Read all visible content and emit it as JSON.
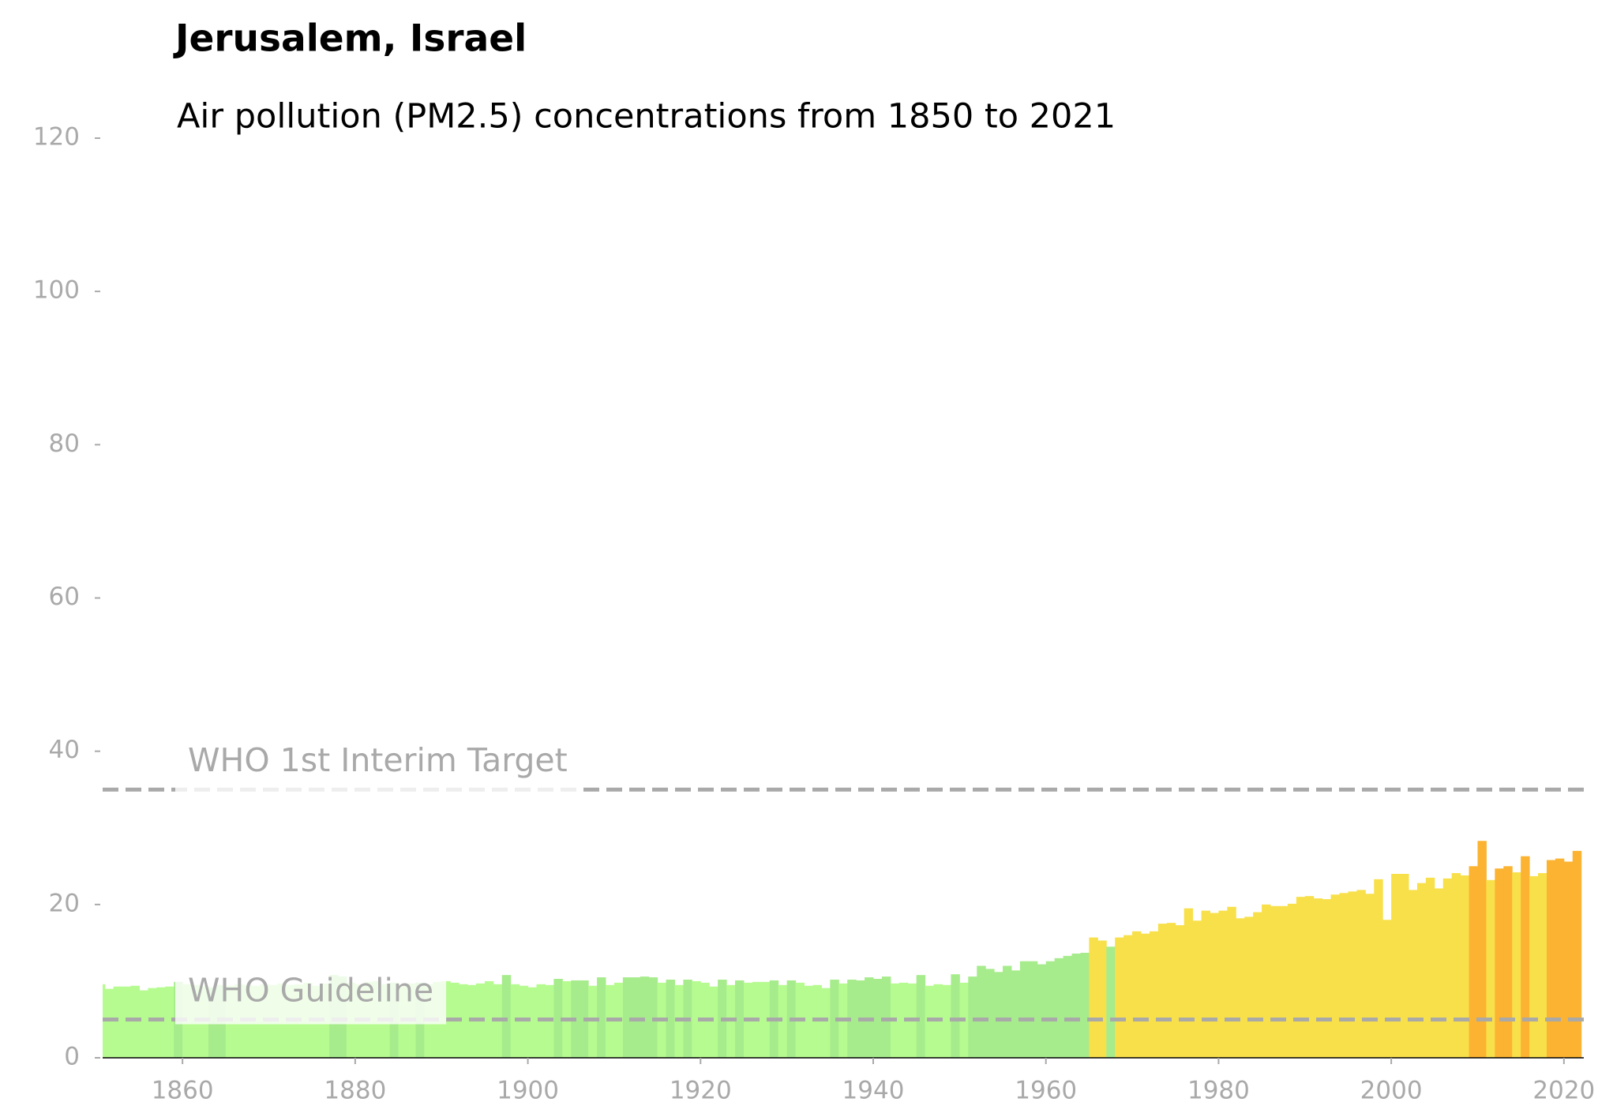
{
  "chart_data": {
    "type": "bar",
    "title": "Jerusalem, Israel",
    "subtitle": "Air pollution (PM2.5) concentrations from 1850 to 2021",
    "x": [
      1850,
      1851,
      1852,
      1853,
      1854,
      1855,
      1856,
      1857,
      1858,
      1859,
      1860,
      1861,
      1862,
      1863,
      1864,
      1865,
      1866,
      1867,
      1868,
      1869,
      1870,
      1871,
      1872,
      1873,
      1874,
      1875,
      1876,
      1877,
      1878,
      1879,
      1880,
      1881,
      1882,
      1883,
      1884,
      1885,
      1886,
      1887,
      1888,
      1889,
      1890,
      1891,
      1892,
      1893,
      1894,
      1895,
      1896,
      1897,
      1898,
      1899,
      1900,
      1901,
      1902,
      1903,
      1904,
      1905,
      1906,
      1907,
      1908,
      1909,
      1910,
      1911,
      1912,
      1913,
      1914,
      1915,
      1916,
      1917,
      1918,
      1919,
      1920,
      1921,
      1922,
      1923,
      1924,
      1925,
      1926,
      1927,
      1928,
      1929,
      1930,
      1931,
      1932,
      1933,
      1934,
      1935,
      1936,
      1937,
      1938,
      1939,
      1940,
      1941,
      1942,
      1943,
      1944,
      1945,
      1946,
      1947,
      1948,
      1949,
      1950,
      1951,
      1952,
      1953,
      1954,
      1955,
      1956,
      1957,
      1958,
      1959,
      1960,
      1961,
      1962,
      1963,
      1964,
      1965,
      1966,
      1967,
      1968,
      1969,
      1970,
      1971,
      1972,
      1973,
      1974,
      1975,
      1976,
      1977,
      1978,
      1979,
      1980,
      1981,
      1982,
      1983,
      1984,
      1985,
      1986,
      1987,
      1988,
      1989,
      1990,
      1991,
      1992,
      1993,
      1994,
      1995,
      1996,
      1997,
      1998,
      1999,
      2000,
      2001,
      2002,
      2003,
      2004,
      2005,
      2006,
      2007,
      2008,
      2009,
      2010,
      2011,
      2012,
      2013,
      2014,
      2015,
      2016,
      2017,
      2018,
      2019,
      2020,
      2021
    ],
    "values": [
      9.6,
      9.0,
      9.3,
      9.3,
      9.4,
      8.8,
      9.1,
      9.2,
      9.3,
      9.9,
      9.6,
      9.5,
      9.4,
      9.2,
      9.5,
      9.4,
      9.6,
      9.5,
      9.4,
      9.6,
      9.5,
      9.7,
      9.5,
      9.6,
      9.8,
      9.4,
      9.7,
      10.8,
      10.6,
      9.8,
      9.6,
      9.9,
      10.0,
      9.6,
      9.8,
      9.5,
      9.7,
      9.8,
      9.6,
      9.9,
      10.0,
      9.8,
      9.6,
      9.5,
      9.7,
      10.0,
      9.6,
      10.8,
      9.6,
      9.4,
      9.2,
      9.6,
      9.5,
      10.3,
      10.0,
      10.1,
      10.1,
      9.4,
      10.5,
      9.5,
      9.8,
      10.5,
      10.5,
      10.6,
      10.5,
      9.8,
      10.2,
      9.5,
      10.2,
      10.0,
      9.8,
      9.3,
      10.2,
      9.5,
      10.1,
      9.8,
      9.9,
      9.9,
      10.1,
      9.5,
      10.1,
      9.8,
      9.4,
      9.5,
      9.1,
      10.2,
      9.7,
      10.2,
      10.1,
      10.5,
      10.3,
      10.6,
      9.7,
      9.8,
      9.7,
      10.8,
      9.4,
      9.6,
      9.5,
      10.9,
      9.8,
      10.6,
      12.0,
      11.6,
      11.2,
      12.0,
      11.4,
      12.6,
      12.6,
      12.2,
      12.6,
      13.0,
      13.3,
      13.6,
      13.7,
      15.7,
      15.3,
      14.5,
      15.7,
      16.0,
      16.5,
      16.2,
      16.5,
      17.5,
      17.6,
      17.3,
      19.5,
      17.9,
      19.2,
      18.9,
      19.2,
      19.7,
      18.2,
      18.4,
      19.0,
      20.0,
      19.8,
      19.8,
      20.1,
      21.0,
      21.1,
      20.8,
      20.7,
      21.3,
      21.5,
      21.7,
      21.9,
      21.4,
      23.3,
      18.0,
      24.0,
      24.0,
      21.9,
      22.8,
      23.5,
      22.1,
      23.4,
      24.1,
      23.8,
      25.0,
      28.3,
      23.2,
      24.7,
      25.0,
      24.2,
      26.3,
      23.7,
      24.1,
      25.8,
      26.0,
      25.6,
      27.0
    ],
    "colors": [
      "#b6fb90",
      "#b6fb90",
      "#b6fb90",
      "#b6fb90",
      "#b6fb90",
      "#b6fb90",
      "#b6fb90",
      "#b6fb90",
      "#b6fb90",
      "#a7ec8c",
      "#b6fb90",
      "#b6fb90",
      "#b6fb90",
      "#a7ec8c",
      "#a7ec8c",
      "#b6fb90",
      "#b6fb90",
      "#b6fb90",
      "#b6fb90",
      "#b6fb90",
      "#b6fb90",
      "#b6fb90",
      "#b6fb90",
      "#b6fb90",
      "#b6fb90",
      "#b6fb90",
      "#b6fb90",
      "#a7ec8c",
      "#a7ec8c",
      "#b6fb90",
      "#b6fb90",
      "#b6fb90",
      "#b6fb90",
      "#b6fb90",
      "#a7ec8c",
      "#b6fb90",
      "#b6fb90",
      "#a7ec8c",
      "#b6fb90",
      "#b6fb90",
      "#b6fb90",
      "#b6fb90",
      "#b6fb90",
      "#b6fb90",
      "#b6fb90",
      "#b6fb90",
      "#b6fb90",
      "#a7ec8c",
      "#b6fb90",
      "#b6fb90",
      "#b6fb90",
      "#b6fb90",
      "#b6fb90",
      "#a7ec8c",
      "#b6fb90",
      "#a7ec8c",
      "#a7ec8c",
      "#b6fb90",
      "#a7ec8c",
      "#b6fb90",
      "#b6fb90",
      "#a7ec8c",
      "#a7ec8c",
      "#a7ec8c",
      "#a7ec8c",
      "#b6fb90",
      "#a7ec8c",
      "#b6fb90",
      "#a7ec8c",
      "#b6fb90",
      "#b6fb90",
      "#b6fb90",
      "#a7ec8c",
      "#b6fb90",
      "#a7ec8c",
      "#b6fb90",
      "#b6fb90",
      "#b6fb90",
      "#a7ec8c",
      "#b6fb90",
      "#a7ec8c",
      "#b6fb90",
      "#b6fb90",
      "#b6fb90",
      "#b6fb90",
      "#a7ec8c",
      "#b6fb90",
      "#a7ec8c",
      "#a7ec8c",
      "#a7ec8c",
      "#a7ec8c",
      "#a7ec8c",
      "#b6fb90",
      "#b6fb90",
      "#b6fb90",
      "#a7ec8c",
      "#b6fb90",
      "#b6fb90",
      "#b6fb90",
      "#a7ec8c",
      "#b6fb90",
      "#a7ec8c",
      "#a7ec8c",
      "#a7ec8c",
      "#a7ec8c",
      "#a7ec8c",
      "#a7ec8c",
      "#a7ec8c",
      "#a7ec8c",
      "#a7ec8c",
      "#a7ec8c",
      "#a7ec8c",
      "#a7ec8c",
      "#a7ec8c",
      "#a7ec8c",
      "#f8e04a",
      "#f8e04a",
      "#a7ec8c",
      "#f8e04a",
      "#f8e04a",
      "#f8e04a",
      "#f8e04a",
      "#f8e04a",
      "#f8e04a",
      "#f8e04a",
      "#f8e04a",
      "#f8e04a",
      "#f8e04a",
      "#f8e04a",
      "#f8e04a",
      "#f8e04a",
      "#f8e04a",
      "#f8e04a",
      "#f8e04a",
      "#f8e04a",
      "#f8e04a",
      "#f8e04a",
      "#f8e04a",
      "#f8e04a",
      "#f8e04a",
      "#f8e04a",
      "#f8e04a",
      "#f8e04a",
      "#f8e04a",
      "#f8e04a",
      "#f8e04a",
      "#f8e04a",
      "#f8e04a",
      "#f8e04a",
      "#f8e04a",
      "#f8e04a",
      "#f8e04a",
      "#f8e04a",
      "#f8e04a",
      "#f8e04a",
      "#f8e04a",
      "#f8e04a",
      "#f8e04a",
      "#f8e04a",
      "#fbb331",
      "#fbb331",
      "#f8e04a",
      "#fbb331",
      "#fbb331",
      "#f8e04a",
      "#fbb331",
      "#f8e04a",
      "#f8e04a",
      "#fbb331",
      "#fbb331",
      "#fbb331",
      "#fbb331"
    ],
    "reference_lines": [
      {
        "label": "WHO Guideline",
        "value": 5
      },
      {
        "label": "WHO 1st Interim Target",
        "value": 35
      }
    ],
    "xlim": [
      1850.75,
      2022.3
    ],
    "ylim": [
      0,
      120
    ],
    "xticks": [
      1860,
      1880,
      1900,
      1920,
      1940,
      1960,
      1980,
      2000,
      2020
    ],
    "yticks": [
      0,
      20,
      40,
      60,
      80,
      100,
      120
    ]
  }
}
